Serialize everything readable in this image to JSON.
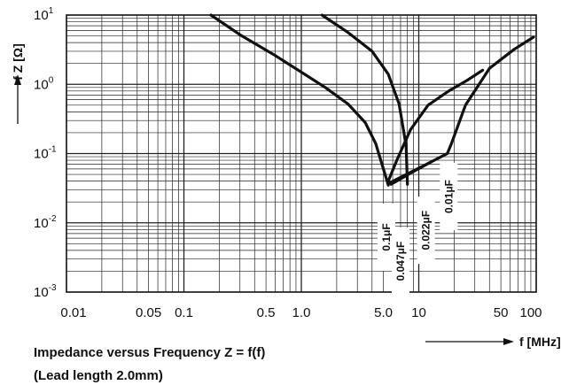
{
  "chart_data": {
    "type": "line",
    "title": "Impedance versus Frequency Z = f(f)",
    "subtitle": "(Lead length 2.0mm)",
    "xlabel": "f [MHz]",
    "ylabel": "f Z [Ω]",
    "x_scale": "log",
    "y_scale": "log",
    "xlim": [
      0.01,
      100
    ],
    "ylim": [
      0.001,
      10
    ],
    "grid": true,
    "x_ticks": [
      {
        "value": 0.01,
        "label": "0.01"
      },
      {
        "value": 0.05,
        "label": "0.05"
      },
      {
        "value": 0.1,
        "label": "0.1"
      },
      {
        "value": 0.5,
        "label": "0.5"
      },
      {
        "value": 1.0,
        "label": "1.0"
      },
      {
        "value": 5.0,
        "label": "5.0"
      },
      {
        "value": 10,
        "label": "10"
      },
      {
        "value": 50,
        "label": "50"
      },
      {
        "value": 100,
        "label": "100"
      }
    ],
    "y_ticks": [
      {
        "value": 10,
        "base": "10",
        "exp": "1"
      },
      {
        "value": 1,
        "base": "10",
        "exp": "0"
      },
      {
        "value": 0.1,
        "base": "10",
        "exp": "-1"
      },
      {
        "value": 0.01,
        "base": "10",
        "exp": "-2"
      },
      {
        "value": 0.001,
        "base": "10",
        "exp": "-3"
      }
    ],
    "series": [
      {
        "name": "0.1μF",
        "x": [
          0.17,
          0.3,
          0.6,
          1.0,
          1.6,
          2.5,
          3.5,
          4.3,
          5.0,
          5.5
        ],
        "y": [
          10,
          5.2,
          2.6,
          1.5,
          0.9,
          0.52,
          0.28,
          0.14,
          0.06,
          0.035
        ]
      },
      {
        "name": "0.047μF",
        "x": [
          1.5,
          2.5,
          4.0,
          5.5,
          6.8,
          7.8,
          8.0
        ],
        "y": [
          10,
          5.6,
          3.0,
          1.4,
          0.52,
          0.13,
          0.036
        ]
      },
      {
        "name": "0.022μF",
        "x": [
          5.5,
          6.5,
          8.5,
          12,
          18,
          26,
          35
        ],
        "y": [
          0.04,
          0.08,
          0.22,
          0.5,
          0.8,
          1.15,
          1.6
        ]
      },
      {
        "name": "0.01μF",
        "x": [
          5.8,
          9,
          13,
          17.5,
          19,
          25,
          40,
          65,
          95
        ],
        "y": [
          0.036,
          0.055,
          0.077,
          0.1,
          0.14,
          0.5,
          1.7,
          3.2,
          4.8
        ]
      }
    ]
  }
}
